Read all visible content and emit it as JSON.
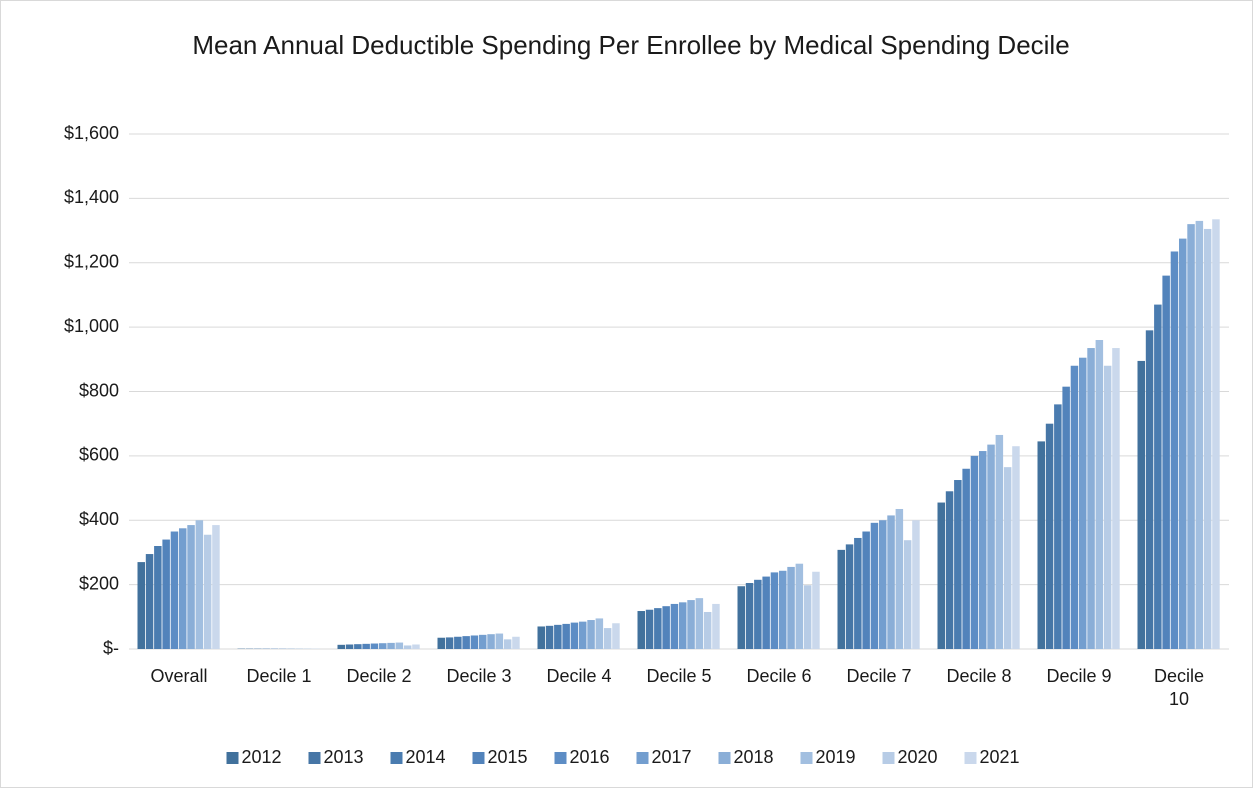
{
  "chart_data": {
    "type": "bar",
    "title": "Mean Annual Deductible Spending Per Enrollee by Medical Spending Decile",
    "categories": [
      "Overall",
      "Decile 1",
      "Decile 2",
      "Decile 3",
      "Decile 4",
      "Decile 5",
      "Decile 6",
      "Decile 7",
      "Decile 8",
      "Decile 9",
      "Decile 10"
    ],
    "series": [
      {
        "name": "2012",
        "color": "#41719c",
        "values": [
          270,
          1,
          13,
          35,
          70,
          118,
          195,
          308,
          455,
          645,
          895
        ]
      },
      {
        "name": "2013",
        "color": "#4676a6",
        "values": [
          295,
          1,
          14,
          36,
          72,
          122,
          205,
          325,
          490,
          700,
          990
        ]
      },
      {
        "name": "2014",
        "color": "#4a7cb0",
        "values": [
          320,
          1,
          15,
          38,
          75,
          127,
          215,
          345,
          525,
          760,
          1070
        ]
      },
      {
        "name": "2015",
        "color": "#5283bb",
        "values": [
          340,
          1,
          16,
          40,
          78,
          133,
          225,
          365,
          560,
          815,
          1160
        ]
      },
      {
        "name": "2016",
        "color": "#5d8dc5",
        "values": [
          365,
          1,
          17,
          42,
          82,
          140,
          238,
          392,
          600,
          880,
          1235
        ]
      },
      {
        "name": "2017",
        "color": "#739ecf",
        "values": [
          375,
          1,
          18,
          44,
          85,
          145,
          243,
          400,
          615,
          905,
          1275
        ]
      },
      {
        "name": "2018",
        "color": "#8aaed7",
        "values": [
          385,
          1,
          19,
          46,
          90,
          152,
          255,
          415,
          635,
          935,
          1320
        ]
      },
      {
        "name": "2019",
        "color": "#a2bfe0",
        "values": [
          400,
          1,
          20,
          48,
          95,
          158,
          265,
          435,
          665,
          960,
          1330
        ]
      },
      {
        "name": "2020",
        "color": "#b7cce6",
        "values": [
          355,
          1,
          11,
          30,
          65,
          115,
          198,
          338,
          565,
          880,
          1305
        ]
      },
      {
        "name": "2021",
        "color": "#cad8ec",
        "values": [
          385,
          1,
          14,
          38,
          80,
          140,
          240,
          400,
          630,
          935,
          1335
        ]
      }
    ],
    "ylim": [
      0,
      1600
    ],
    "yticks": [
      {
        "value": 0,
        "label": "$-"
      },
      {
        "value": 200,
        "label": "$200"
      },
      {
        "value": 400,
        "label": "$400"
      },
      {
        "value": 600,
        "label": "$600"
      },
      {
        "value": 800,
        "label": "$800"
      },
      {
        "value": 1000,
        "label": "$1,000"
      },
      {
        "value": 1200,
        "label": "$1,200"
      },
      {
        "value": 1400,
        "label": "$1,400"
      },
      {
        "value": 1600,
        "label": "$1,600"
      }
    ],
    "grid": true,
    "legend": "bottom"
  }
}
